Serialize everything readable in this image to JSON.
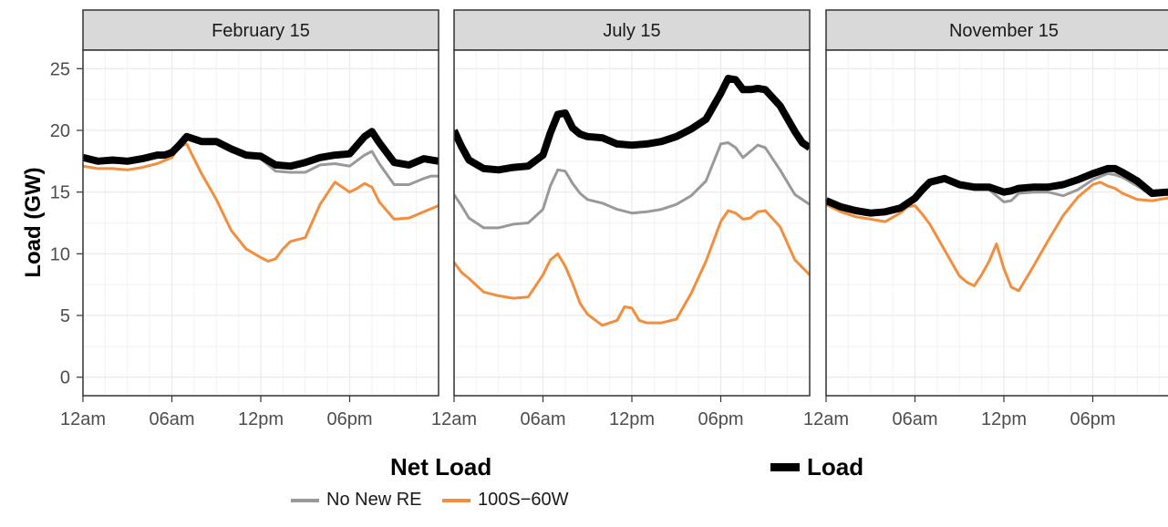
{
  "chart_data": {
    "type": "line",
    "ylabel": "Load (GW)",
    "ylim": [
      -1.5,
      26.5
    ],
    "yticks": [
      0,
      5,
      10,
      15,
      20,
      25
    ],
    "x_unit": "hour of day",
    "xlim": [
      0,
      24
    ],
    "xticks": [
      {
        "hour": 0,
        "label": "12am"
      },
      {
        "hour": 6,
        "label": "06am"
      },
      {
        "hour": 12,
        "label": "12pm"
      },
      {
        "hour": 18,
        "label": "06pm"
      }
    ],
    "grid": true,
    "legend_position": "bottom",
    "legend": {
      "net_load_title": "Net Load",
      "load_label": "Load",
      "no_new_re_label": "No New RE",
      "s100_w60_label": "100S−60W"
    },
    "colors": {
      "load": "#000000",
      "no_new_re": "#999999",
      "s100_w60": "#f28e3d"
    },
    "panels": [
      {
        "title": "February 15",
        "series": [
          {
            "name": "Load",
            "x": [
              0,
              1,
              2,
              3,
              4,
              5,
              5.5,
              6,
              6.5,
              7,
              8,
              9,
              10,
              11,
              12,
              13,
              14,
              15,
              16,
              17,
              18,
              19,
              19.5,
              20,
              21,
              22,
              23,
              24
            ],
            "values": [
              17.8,
              17.5,
              17.6,
              17.5,
              17.7,
              18.0,
              18.0,
              18.2,
              18.8,
              19.5,
              19.1,
              19.1,
              18.5,
              18.0,
              17.9,
              17.2,
              17.1,
              17.4,
              17.8,
              18.0,
              18.1,
              19.5,
              19.9,
              19.0,
              17.4,
              17.2,
              17.7,
              17.5
            ]
          },
          {
            "name": "No New RE",
            "x": [
              0,
              1,
              2,
              3,
              4,
              5,
              6,
              6.5,
              7,
              8,
              9,
              10,
              11,
              12,
              13,
              14,
              15,
              16,
              17,
              18,
              19,
              19.5,
              20,
              21,
              22,
              23,
              23.5,
              24
            ],
            "values": [
              17.6,
              17.4,
              17.4,
              17.4,
              17.6,
              17.8,
              18.0,
              18.6,
              19.3,
              19.0,
              19.0,
              18.3,
              17.9,
              17.7,
              16.7,
              16.6,
              16.6,
              17.2,
              17.3,
              17.1,
              18.0,
              18.3,
              17.3,
              15.6,
              15.6,
              16.1,
              16.3,
              16.3
            ]
          },
          {
            "name": "100S−60W",
            "x": [
              0,
              1,
              2,
              3,
              4,
              5,
              6,
              6.5,
              7,
              8,
              9,
              10,
              11,
              12,
              12.5,
              13,
              13.5,
              14,
              15,
              16,
              17,
              18,
              18.5,
              19,
              19.5,
              20,
              21,
              22,
              23,
              24
            ],
            "values": [
              17.1,
              16.9,
              16.9,
              16.8,
              17.0,
              17.3,
              17.8,
              18.7,
              18.9,
              16.5,
              14.4,
              11.9,
              10.4,
              9.7,
              9.4,
              9.6,
              10.4,
              11.0,
              11.3,
              14.0,
              15.8,
              15.0,
              15.3,
              15.7,
              15.4,
              14.2,
              12.8,
              12.9,
              13.4,
              13.9
            ]
          }
        ]
      },
      {
        "title": "July 15",
        "series": [
          {
            "name": "Load",
            "x": [
              0,
              0.5,
              1,
              2,
              3,
              4,
              5,
              6,
              6.5,
              7,
              7.5,
              8,
              8.5,
              9,
              10,
              11,
              12,
              13,
              14,
              15,
              16,
              17,
              18,
              18.5,
              19,
              19.5,
              20,
              20.5,
              21,
              22,
              23,
              23.5,
              24
            ],
            "values": [
              20.0,
              18.7,
              17.6,
              16.9,
              16.8,
              17.0,
              17.1,
              18.0,
              19.8,
              21.3,
              21.4,
              20.2,
              19.7,
              19.5,
              19.4,
              18.9,
              18.8,
              18.9,
              19.1,
              19.5,
              20.1,
              20.9,
              23.0,
              24.2,
              24.1,
              23.3,
              23.3,
              23.4,
              23.3,
              22.0,
              19.9,
              19.0,
              18.6
            ]
          },
          {
            "name": "No New RE",
            "x": [
              0,
              0.5,
              1,
              2,
              3,
              4,
              5,
              6,
              6.5,
              7,
              7.5,
              8,
              8.5,
              9,
              10,
              11,
              12,
              13,
              14,
              15,
              16,
              17,
              18,
              18.5,
              19,
              19.5,
              20,
              20.5,
              21,
              22,
              23,
              24
            ],
            "values": [
              14.8,
              13.9,
              12.9,
              12.1,
              12.1,
              12.4,
              12.5,
              13.6,
              15.5,
              16.8,
              16.7,
              15.7,
              14.9,
              14.4,
              14.1,
              13.6,
              13.3,
              13.4,
              13.6,
              14.0,
              14.7,
              15.9,
              18.9,
              19.0,
              18.6,
              17.8,
              18.3,
              18.8,
              18.6,
              16.8,
              14.8,
              14.0
            ]
          },
          {
            "name": "100S−60W",
            "x": [
              0,
              0.5,
              1,
              2,
              3,
              4,
              5,
              6,
              6.5,
              7,
              7.5,
              8,
              8.5,
              9,
              10,
              11,
              11.5,
              12,
              12.5,
              13,
              13.5,
              14,
              15,
              16,
              17,
              18,
              18.5,
              19,
              19.5,
              20,
              20.5,
              21,
              22,
              23,
              24
            ],
            "values": [
              9.3,
              8.5,
              8.0,
              6.9,
              6.6,
              6.4,
              6.5,
              8.3,
              9.5,
              10.0,
              9.0,
              7.6,
              6.0,
              5.1,
              4.2,
              4.6,
              5.7,
              5.6,
              4.6,
              4.4,
              4.4,
              4.4,
              4.7,
              6.8,
              9.4,
              12.6,
              13.5,
              13.3,
              12.8,
              12.9,
              13.4,
              13.5,
              12.2,
              9.5,
              8.3
            ]
          }
        ]
      },
      {
        "title": "November 15",
        "series": [
          {
            "name": "Load",
            "x": [
              0,
              1,
              2,
              3,
              4,
              5,
              6,
              6.5,
              7,
              8,
              9,
              10,
              11,
              12,
              12.5,
              13,
              14,
              15,
              16,
              17,
              18,
              19,
              19.5,
              20,
              21,
              22,
              23,
              24
            ],
            "values": [
              14.3,
              13.8,
              13.5,
              13.3,
              13.4,
              13.7,
              14.5,
              15.2,
              15.8,
              16.1,
              15.6,
              15.4,
              15.4,
              15.0,
              15.1,
              15.3,
              15.4,
              15.4,
              15.6,
              16.0,
              16.5,
              16.9,
              16.9,
              16.6,
              15.9,
              14.9,
              15.0,
              15.0
            ]
          },
          {
            "name": "No New RE",
            "x": [
              0,
              1,
              2,
              3,
              4,
              5,
              6,
              6.5,
              7,
              8,
              9,
              10,
              11,
              12,
              12.5,
              13,
              14,
              15,
              16,
              17,
              18,
              19,
              19.5,
              20,
              21,
              22,
              23,
              24
            ],
            "values": [
              14.2,
              13.7,
              13.4,
              13.2,
              13.3,
              13.6,
              14.3,
              15.0,
              15.6,
              15.9,
              15.4,
              15.2,
              15.2,
              14.2,
              14.3,
              14.9,
              15.0,
              15.0,
              14.7,
              15.2,
              16.0,
              16.5,
              16.4,
              16.2,
              15.5,
              14.7,
              14.8,
              14.8
            ]
          },
          {
            "name": "100S−60W",
            "x": [
              0,
              1,
              2,
              3,
              4,
              5,
              5.5,
              6,
              6.5,
              7,
              8,
              9,
              9.5,
              10,
              10.5,
              11,
              11.5,
              12,
              12.5,
              13,
              13.5,
              14,
              15,
              16,
              17,
              18,
              18.5,
              19,
              19.5,
              20,
              21,
              22,
              23,
              24
            ],
            "values": [
              14.0,
              13.4,
              13.0,
              12.8,
              12.6,
              13.3,
              13.8,
              13.9,
              13.2,
              12.4,
              10.3,
              8.2,
              7.7,
              7.4,
              8.3,
              9.4,
              10.8,
              8.8,
              7.3,
              7.0,
              8.0,
              9.0,
              11.1,
              13.1,
              14.6,
              15.6,
              15.8,
              15.5,
              15.3,
              14.9,
              14.4,
              14.3,
              14.5,
              14.7
            ]
          }
        ]
      }
    ]
  }
}
